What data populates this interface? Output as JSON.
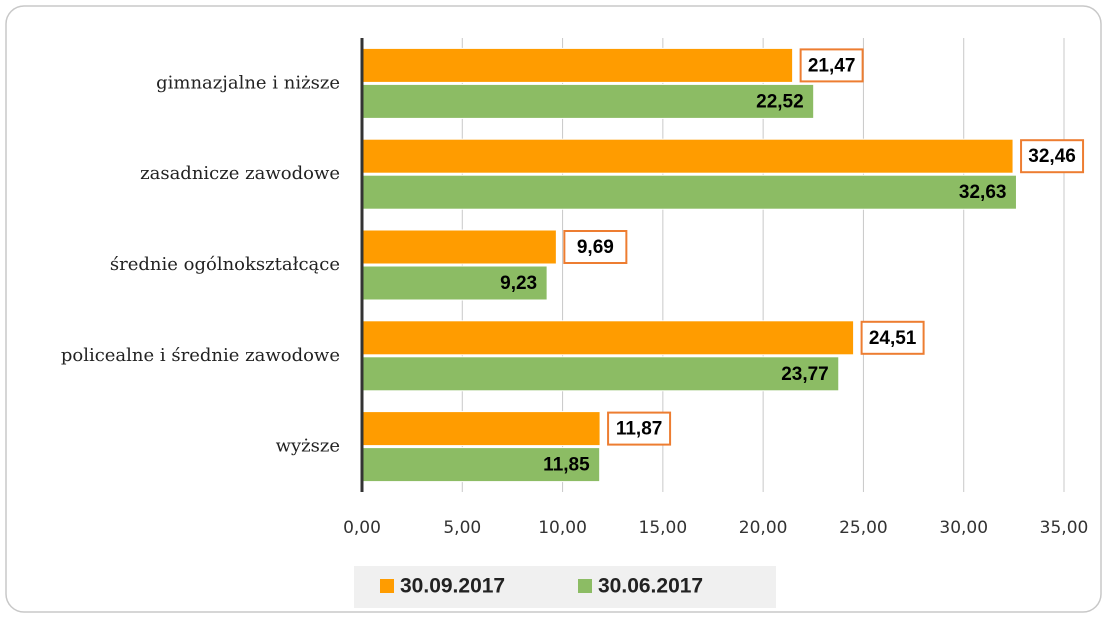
{
  "chart_data": {
    "type": "bar",
    "orientation": "horizontal",
    "categories": [
      "gimnazjalne i niższe",
      "zasadnicze zawodowe",
      "średnie ogólnokształcące",
      "policealne i średnie zawodowe",
      "wyższe"
    ],
    "series": [
      {
        "name": "30.09.2017",
        "color": "#ff9c00",
        "values": [
          21.47,
          32.46,
          9.69,
          24.51,
          11.87
        ],
        "value_labels": [
          "21,47",
          "32,46",
          "9,69",
          "24,51",
          "11,87"
        ]
      },
      {
        "name": "30.06.2017",
        "color": "#8cbc64",
        "values": [
          22.52,
          32.63,
          9.23,
          23.77,
          11.85
        ],
        "value_labels": [
          "22,52",
          "32,63",
          "9,23",
          "23,77",
          "11,85"
        ]
      }
    ],
    "xlim": [
      0,
      35
    ],
    "xticks": [
      {
        "value": 0,
        "label": "0,00"
      },
      {
        "value": 5,
        "label": "5,00"
      },
      {
        "value": 10,
        "label": "10,00"
      },
      {
        "value": 15,
        "label": "15,00"
      },
      {
        "value": 20,
        "label": "20,00"
      },
      {
        "value": 25,
        "label": "25,00"
      },
      {
        "value": 30,
        "label": "30,00"
      },
      {
        "value": 35,
        "label": "35,00"
      }
    ],
    "grid": true,
    "legend": "bottom"
  }
}
